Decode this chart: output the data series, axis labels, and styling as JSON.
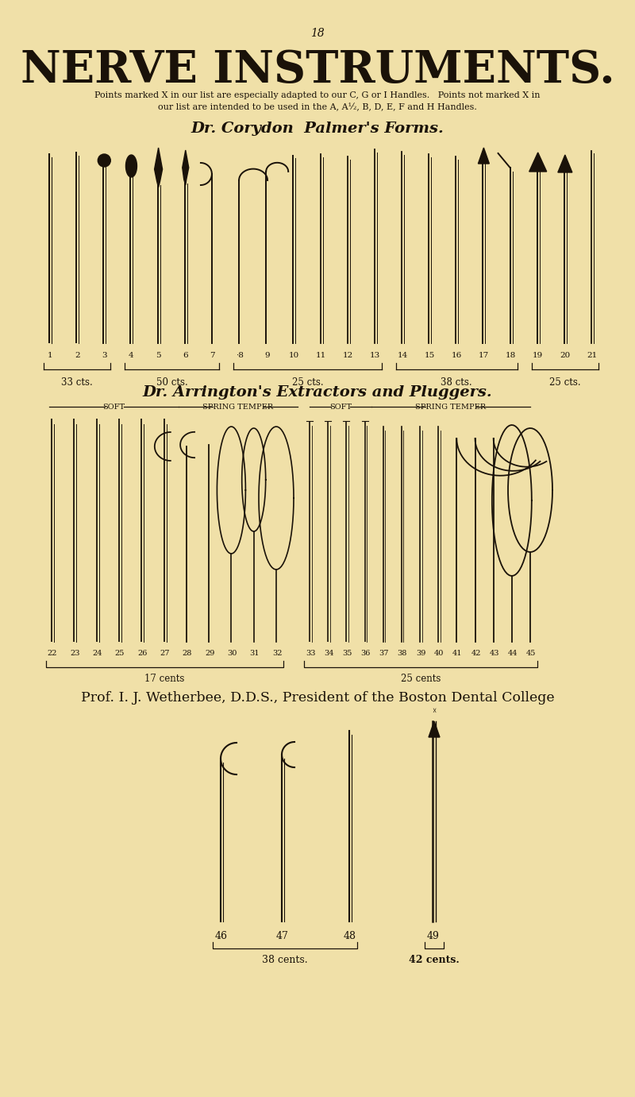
{
  "bg_color": "#f0e0a8",
  "page_number": "18",
  "title": "NERVE INSTRUMENTS.",
  "subtitle_line1": "Points marked X in our list are especially adapted to our C, G or I Handles.   Points not marked X in",
  "subtitle_line2": "our list are intended to be used in the A, A½, B, D, E, F and H Handles.",
  "section1_title": "Dr. Corydon  Palmer's Forms.",
  "section2_title": "Dr. Arrington's Extractors and Pluggers.",
  "section3_title": "Prof. I. J. Wetherbee, D.D.S., President of the Boston Dental College",
  "text_color": "#1a1209",
  "instrument_color": "#1a1209",
  "group1_labels": [
    "1",
    "2",
    "3",
    "4",
    "5",
    "6",
    "7",
    "·8",
    "9",
    "10",
    "11",
    "12",
    "13",
    "14",
    "15",
    "16",
    "17",
    "18",
    "19",
    "20",
    "21"
  ],
  "group1_prices": [
    {
      "label": "33 cts.",
      "start": 0,
      "end": 2
    },
    {
      "label": "50 cts.",
      "start": 3,
      "end": 6
    },
    {
      "label": "25 cts.",
      "start": 7,
      "end": 12
    },
    {
      "label": "38 cts.",
      "start": 13,
      "end": 17
    },
    {
      "label": "25 cts.",
      "start": 18,
      "end": 20
    }
  ],
  "group2_labels": [
    "22",
    "23",
    "24",
    "25",
    "26",
    "27",
    "28",
    "29",
    "30",
    "31",
    "32",
    "33",
    "34",
    "35",
    "36",
    "37",
    "38",
    "39",
    "40",
    "41",
    "42",
    "43",
    "44",
    "45"
  ],
  "group2_prices_left": "17 cents",
  "group2_prices_right": "25 cents",
  "group3_labels": [
    "46",
    "47",
    "48",
    "49"
  ],
  "price_38": "38 cents.",
  "price_42": "42 cents."
}
